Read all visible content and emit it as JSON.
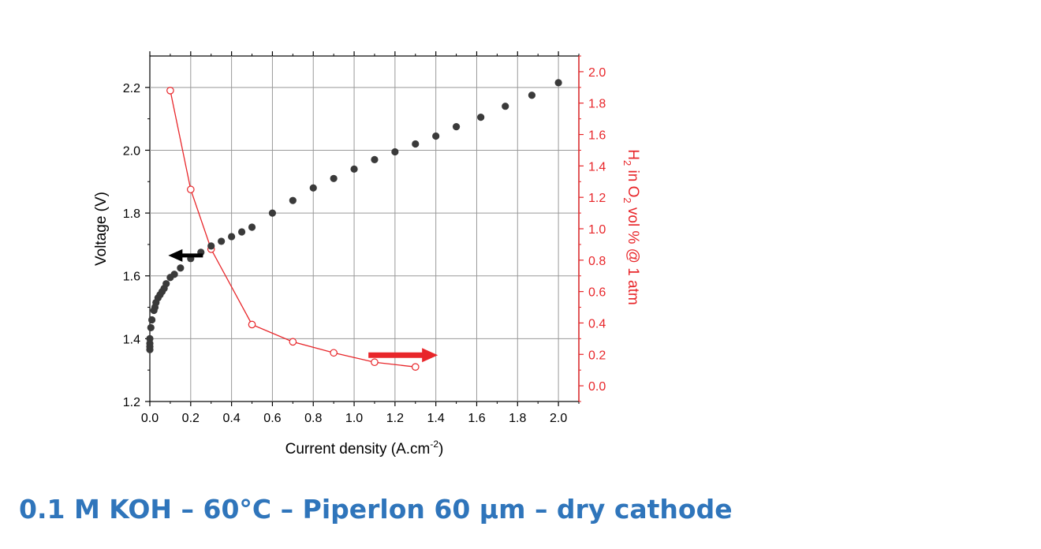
{
  "caption": "0.1 M KOH – 60°C – Piperlon 60 µm – dry cathode",
  "chart_data": {
    "type": "scatter",
    "xlabel": "Current density (A.cm⁻²)",
    "xlabel_main": "Current density (A.cm",
    "xlabel_sup": "-2",
    "xlabel_end": ")",
    "ylabel": "Voltage (V)",
    "y2label": "H₂ in O₂ vol % @ 1 atm",
    "y2label_parts": {
      "a": "H",
      "b": "2",
      "c": " in O",
      "d": "2",
      "e": " vol % @ 1 atm"
    },
    "xlim": [
      0,
      2.1
    ],
    "ylim": [
      1.2,
      2.3
    ],
    "y2lim": [
      -0.1,
      2.1
    ],
    "xticks": [
      "0.0",
      "0.2",
      "0.4",
      "0.6",
      "0.8",
      "1.0",
      "1.2",
      "1.4",
      "1.6",
      "1.8",
      "2.0"
    ],
    "yticks": [
      "1.2",
      "1.4",
      "1.6",
      "1.8",
      "2.0",
      "2.2"
    ],
    "y2ticks": [
      "0.0",
      "0.2",
      "0.4",
      "0.6",
      "0.8",
      "1.0",
      "1.2",
      "1.4",
      "1.6",
      "1.8",
      "2.0"
    ],
    "grid": true,
    "series": [
      {
        "axis": "left",
        "marker": "filled-circle",
        "color": "#3a3a3a",
        "x": [
          0.0,
          0.0,
          0.0,
          0.0,
          0.005,
          0.01,
          0.02,
          0.025,
          0.03,
          0.04,
          0.05,
          0.06,
          0.07,
          0.08,
          0.1,
          0.12,
          0.15,
          0.2,
          0.25,
          0.3,
          0.35,
          0.4,
          0.45,
          0.5,
          0.6,
          0.7,
          0.8,
          0.9,
          1.0,
          1.1,
          1.2,
          1.3,
          1.4,
          1.5,
          1.62,
          1.74,
          1.87,
          2.0
        ],
        "y": [
          1.365,
          1.375,
          1.385,
          1.4,
          1.435,
          1.46,
          1.49,
          1.5,
          1.515,
          1.53,
          1.54,
          1.55,
          1.56,
          1.575,
          1.595,
          1.605,
          1.625,
          1.655,
          1.675,
          1.695,
          1.71,
          1.725,
          1.74,
          1.755,
          1.8,
          1.84,
          1.88,
          1.91,
          1.94,
          1.97,
          1.995,
          2.02,
          2.045,
          2.075,
          2.105,
          2.14,
          2.175,
          2.215
        ]
      },
      {
        "axis": "right",
        "marker": "open-circle",
        "line": true,
        "color": "#e8262a",
        "x": [
          0.1,
          0.2,
          0.3,
          0.5,
          0.7,
          0.9,
          1.1,
          1.3
        ],
        "y": [
          1.88,
          1.25,
          0.87,
          0.39,
          0.28,
          0.21,
          0.15,
          0.12
        ]
      }
    ],
    "annotations": [
      {
        "type": "arrow",
        "direction": "left",
        "color": "#000000",
        "points_to": "left axis",
        "x": 0.26,
        "y": 1.665
      },
      {
        "type": "arrow",
        "direction": "right",
        "color": "#e8262a",
        "points_to": "right axis",
        "x": 1.07,
        "y2": 0.195
      }
    ],
    "colors": {
      "left_axis": "#000000",
      "right_axis": "#e8262a",
      "grid": "#999999",
      "caption": "#2f75bb"
    }
  }
}
